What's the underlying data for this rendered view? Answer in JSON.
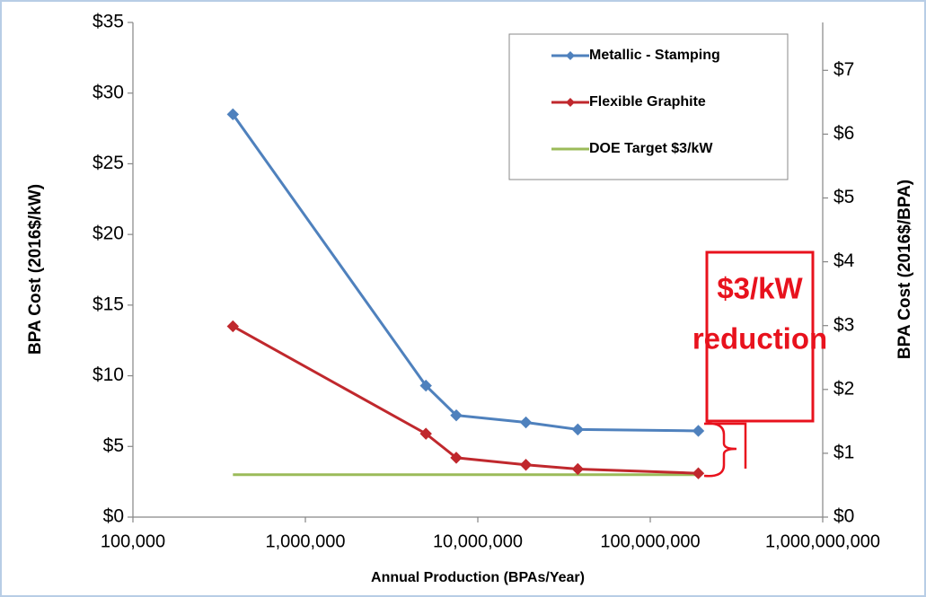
{
  "chart_data": {
    "type": "line",
    "x": [
      380000,
      5000000,
      7500000,
      19000000,
      38000000,
      190000000
    ],
    "series": [
      {
        "name": "Metallic - Stamping",
        "color": "#4f81bd",
        "marker": "diamond",
        "values": [
          28.5,
          9.3,
          7.2,
          6.7,
          6.2,
          6.1
        ]
      },
      {
        "name": "Flexible Graphite",
        "color": "#c0282d",
        "marker": "diamond",
        "values": [
          13.5,
          5.9,
          4.2,
          3.7,
          3.4,
          3.1
        ]
      },
      {
        "name": "DOE Target $3/kW",
        "color": "#9bbb59",
        "values": [
          3,
          3,
          3,
          3,
          3,
          3
        ]
      }
    ],
    "xlabel": "Annual Production (BPAs/Year)",
    "ylabel": "BPA Cost (2016$/kW)",
    "y2label": "BPA Cost (2016$/BPA)",
    "xscale": "log",
    "xlim": [
      100000,
      1000000000
    ],
    "xticks": [
      {
        "value": 100000,
        "label": "100,000"
      },
      {
        "value": 1000000,
        "label": "1,000,000"
      },
      {
        "value": 10000000,
        "label": "10,000,000"
      },
      {
        "value": 100000000,
        "label": "100,000,000"
      },
      {
        "value": 1000000000,
        "label": "1,000,000,000"
      }
    ],
    "ylim": [
      0,
      35
    ],
    "yticks": [
      {
        "value": 0,
        "label": "$0"
      },
      {
        "value": 5,
        "label": "$5"
      },
      {
        "value": 10,
        "label": "$10"
      },
      {
        "value": 15,
        "label": "$15"
      },
      {
        "value": 20,
        "label": "$20"
      },
      {
        "value": 25,
        "label": "$25"
      },
      {
        "value": 30,
        "label": "$30"
      },
      {
        "value": 35,
        "label": "$35"
      }
    ],
    "y2lim": [
      0,
      7.75
    ],
    "y2ticks": [
      {
        "value": 0,
        "label": "$0"
      },
      {
        "value": 1,
        "label": "$1"
      },
      {
        "value": 2,
        "label": "$2"
      },
      {
        "value": 3,
        "label": "$3"
      },
      {
        "value": 4,
        "label": "$4"
      },
      {
        "value": 5,
        "label": "$5"
      },
      {
        "value": 6,
        "label": "$6"
      },
      {
        "value": 7,
        "label": "$7"
      }
    ],
    "legend": "upper right",
    "annotation": [
      "$3/kW",
      "reduction"
    ]
  }
}
